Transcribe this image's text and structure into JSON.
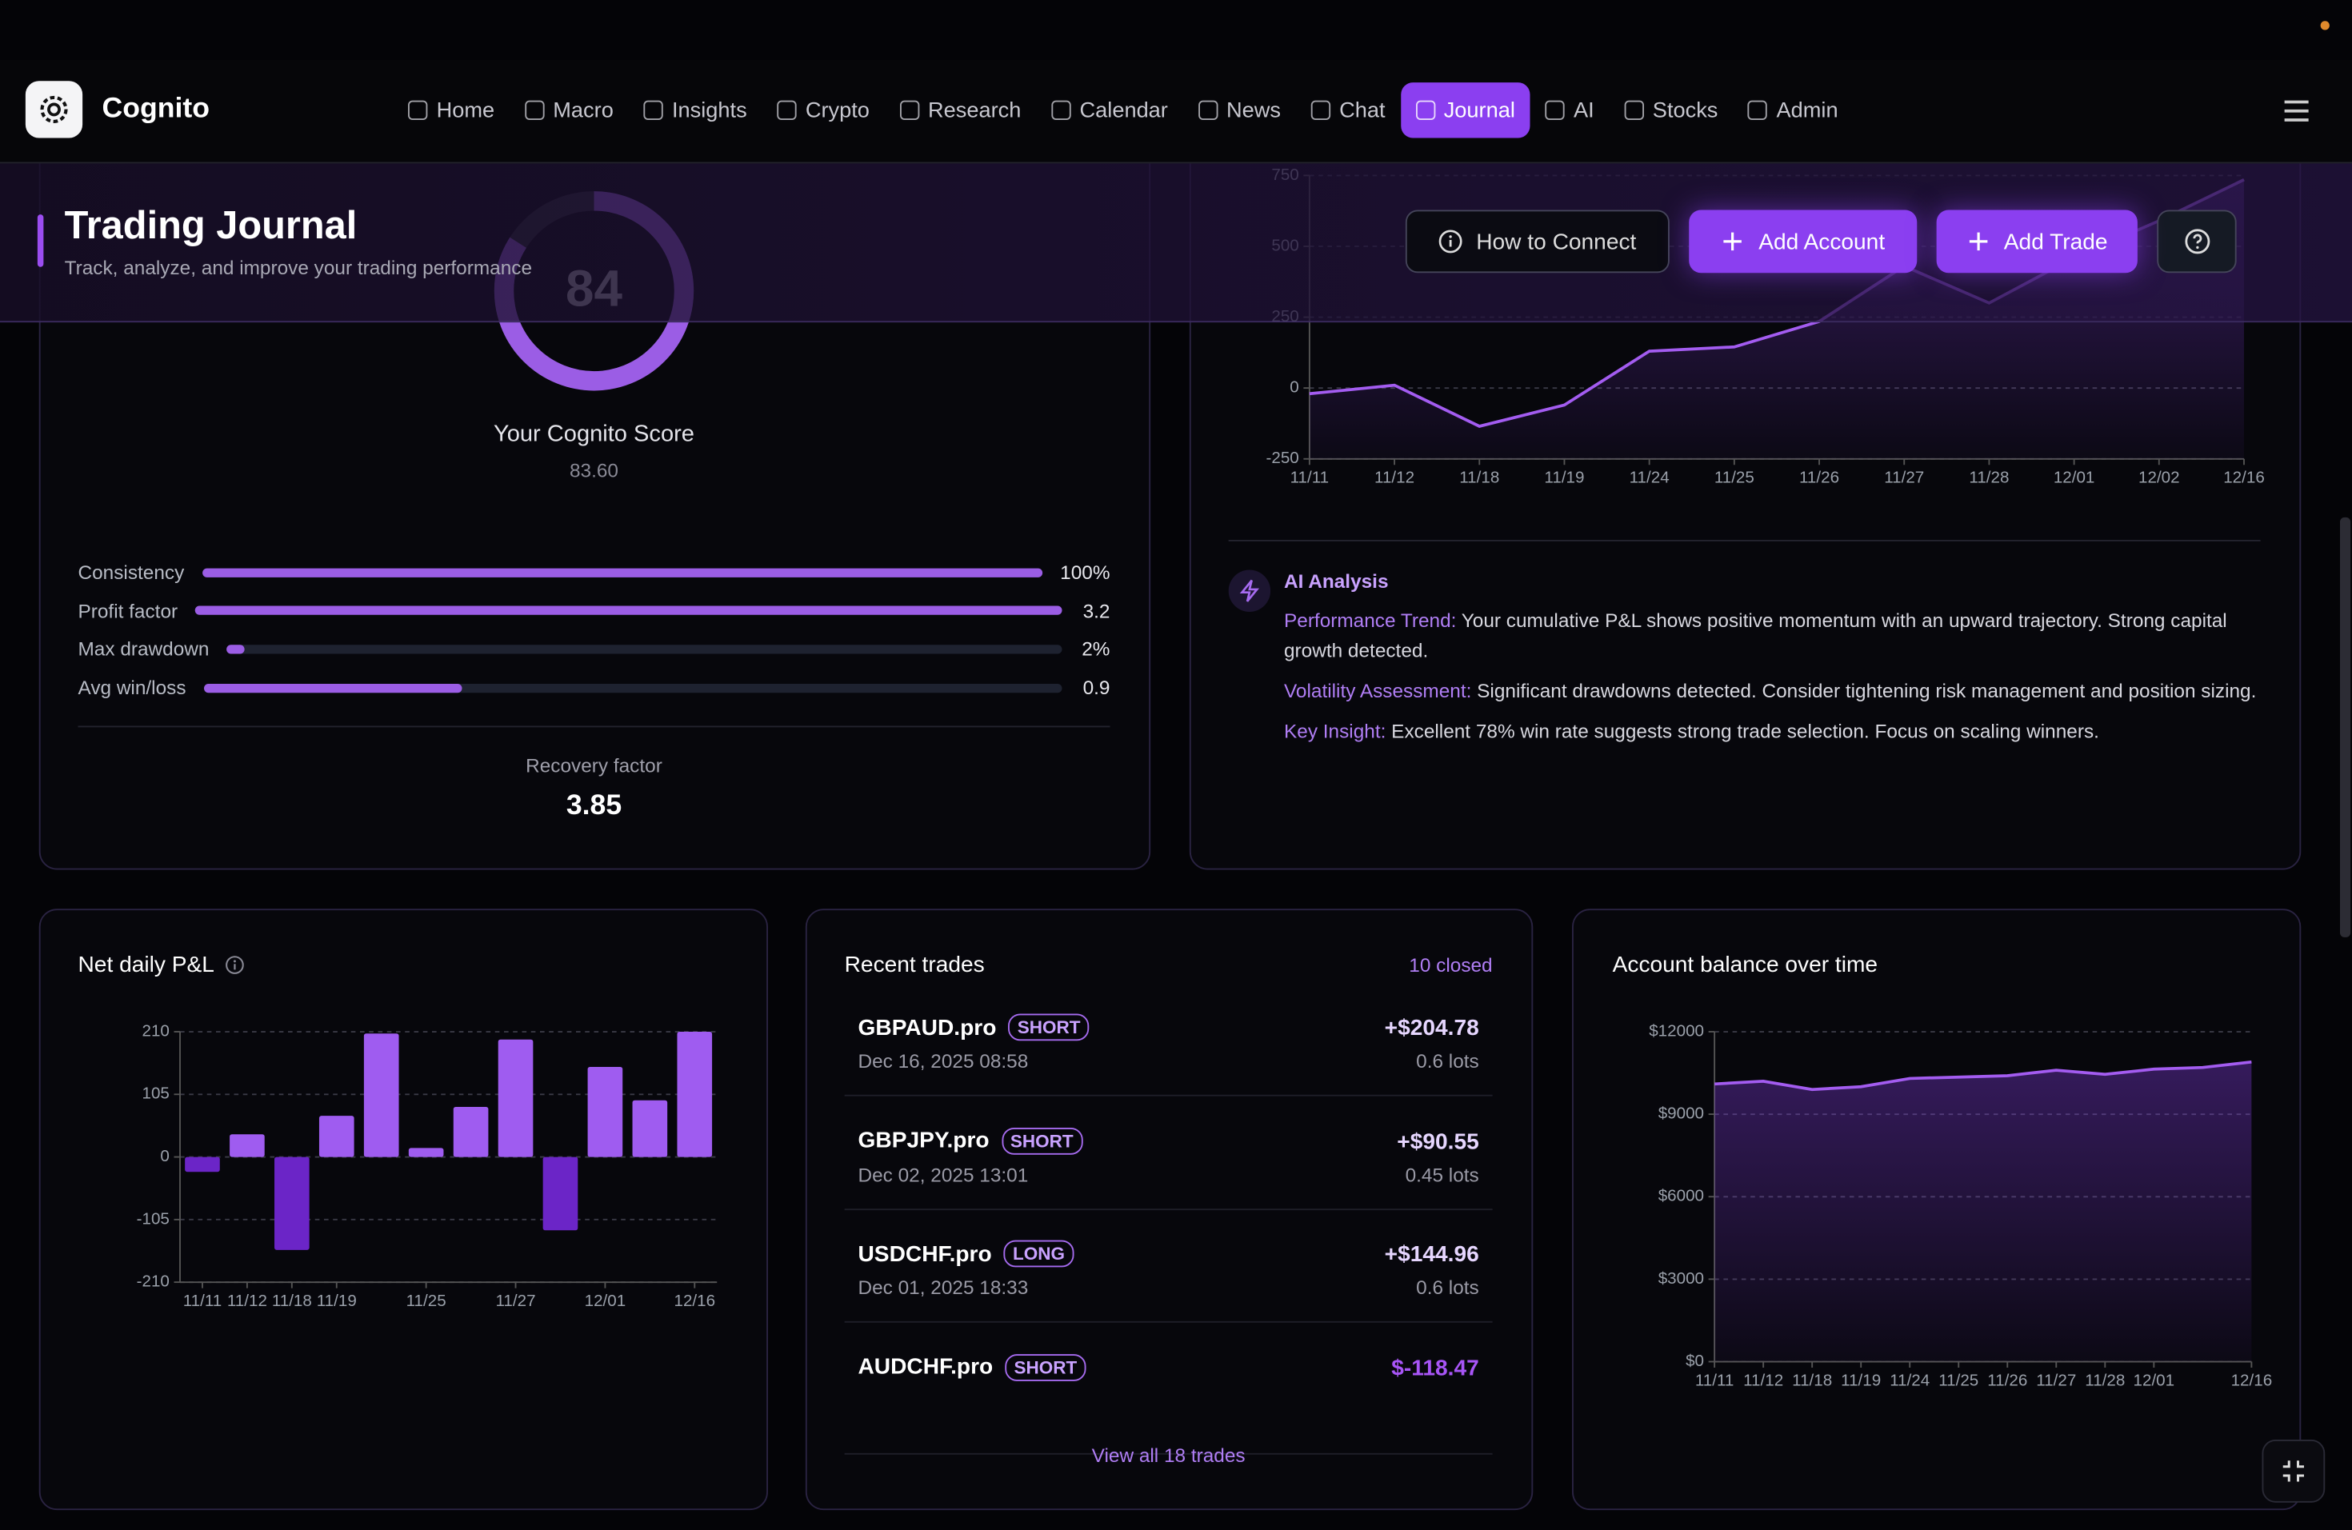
{
  "nav": {
    "brand": "Cognito",
    "items": [
      "Home",
      "Macro",
      "Insights",
      "Crypto",
      "Research",
      "Calendar",
      "News",
      "Chat",
      "Journal",
      "AI",
      "Stocks",
      "Admin"
    ],
    "active_index": 8
  },
  "header": {
    "title": "Trading Journal",
    "subtitle": "Track, analyze, and improve your trading performance",
    "buttons": [
      "How to Connect",
      "Add Account",
      "Add Trade"
    ]
  },
  "score_card": {
    "score": 84,
    "score_lim": [
      0,
      100
    ],
    "label": "Your Cognito Score",
    "precise_score": "83.60",
    "metrics": [
      {
        "name": "Consistency",
        "value": 100,
        "value_label": "100%",
        "lim": [
          0,
          100
        ]
      },
      {
        "name": "Profit factor",
        "value": 3.2,
        "lim": [
          0,
          3.2
        ]
      },
      {
        "name": "Max drawdown",
        "value": 2,
        "value_label": "2%",
        "lim": [
          0,
          100
        ]
      },
      {
        "name": "Avg win/loss",
        "value": 0.9,
        "lim": [
          0,
          3
        ]
      }
    ],
    "recovery": {
      "label": "Recovery factor",
      "value": 3.85
    }
  },
  "ai_analysis": {
    "title": "AI Analysis",
    "items": [
      {
        "label": "Performance Trend:",
        "text": "Your cumulative P&L shows positive momentum with an upward trajectory. Strong capital growth detected."
      },
      {
        "label": "Volatility Assessment:",
        "text": "Significant drawdowns detected. Consider tightening risk management and position sizing."
      },
      {
        "label": "Key Insight:",
        "text": "Excellent 78% win rate suggests strong trade selection. Focus on scaling winners."
      }
    ]
  },
  "trades": {
    "title": "Recent trades",
    "count_label": "10 closed",
    "rows": [
      {
        "symbol": "GBPAUD.pro",
        "side": "SHORT",
        "time": "Dec 16, 2025 08:58",
        "pnl": "+$204.78",
        "lots": "0.6 lots"
      },
      {
        "symbol": "GBPJPY.pro",
        "side": "SHORT",
        "time": "Dec 02, 2025 13:01",
        "pnl": "+$90.55",
        "lots": "0.45 lots"
      },
      {
        "symbol": "USDCHF.pro",
        "side": "LONG",
        "time": "Dec 01, 2025 18:33",
        "pnl": "+$144.96",
        "lots": "0.6 lots"
      },
      {
        "symbol": "AUDCHF.pro",
        "side": "SHORT",
        "pnl": "$-118.47"
      }
    ],
    "footer": "View all 18 trades"
  },
  "chart_data": [
    {
      "type": "area",
      "categories": [
        "11/11",
        "11/12",
        "11/18",
        "11/19",
        "11/24",
        "11/25",
        "11/26",
        "11/27",
        "11/28",
        "12/01",
        "12/02",
        "12/16"
      ],
      "values": [
        -20,
        10,
        -135,
        -60,
        130,
        145,
        235,
        430,
        300,
        460,
        590,
        735
      ],
      "color": "#a35cf0",
      "ylim": [
        -250,
        750
      ],
      "yticks": [
        750,
        500,
        250,
        0,
        -250
      ],
      "grid": true
    },
    {
      "type": "bar",
      "title": "Net daily P&L",
      "categories": [
        "11/11",
        "11/12",
        "11/18",
        "11/19",
        null,
        "11/25",
        null,
        "11/27",
        null,
        "12/01",
        null,
        "12/16"
      ],
      "values": [
        -25,
        38,
        -156,
        69,
        207,
        15,
        84,
        197,
        -123,
        151,
        95,
        210
      ],
      "color": "#9f5cf0",
      "negative_color": "#6b25c7",
      "ylim": [
        -210,
        210
      ],
      "yticks": [
        210,
        105,
        0,
        -105,
        -210
      ],
      "grid": true
    },
    {
      "type": "area",
      "title": "Account balance over time",
      "categories": [
        "11/11",
        "11/12",
        "11/18",
        "11/19",
        "11/24",
        "11/25",
        "11/26",
        "11/27",
        "11/28",
        "12/01",
        null,
        "12/16"
      ],
      "values": [
        10100,
        10200,
        9900,
        10000,
        10300,
        10350,
        10400,
        10600,
        10450,
        10640,
        10700,
        10900
      ],
      "color": "#a35cf0",
      "ylim": [
        0,
        12000
      ],
      "yticks": [
        {
          "value": 12000,
          "label": "$12000"
        },
        {
          "value": 9000,
          "label": "$9000"
        },
        {
          "value": 6000,
          "label": "$6000"
        },
        {
          "value": 3000,
          "label": "$3000"
        },
        {
          "value": 0,
          "label": "$0"
        }
      ],
      "grid": true
    }
  ]
}
